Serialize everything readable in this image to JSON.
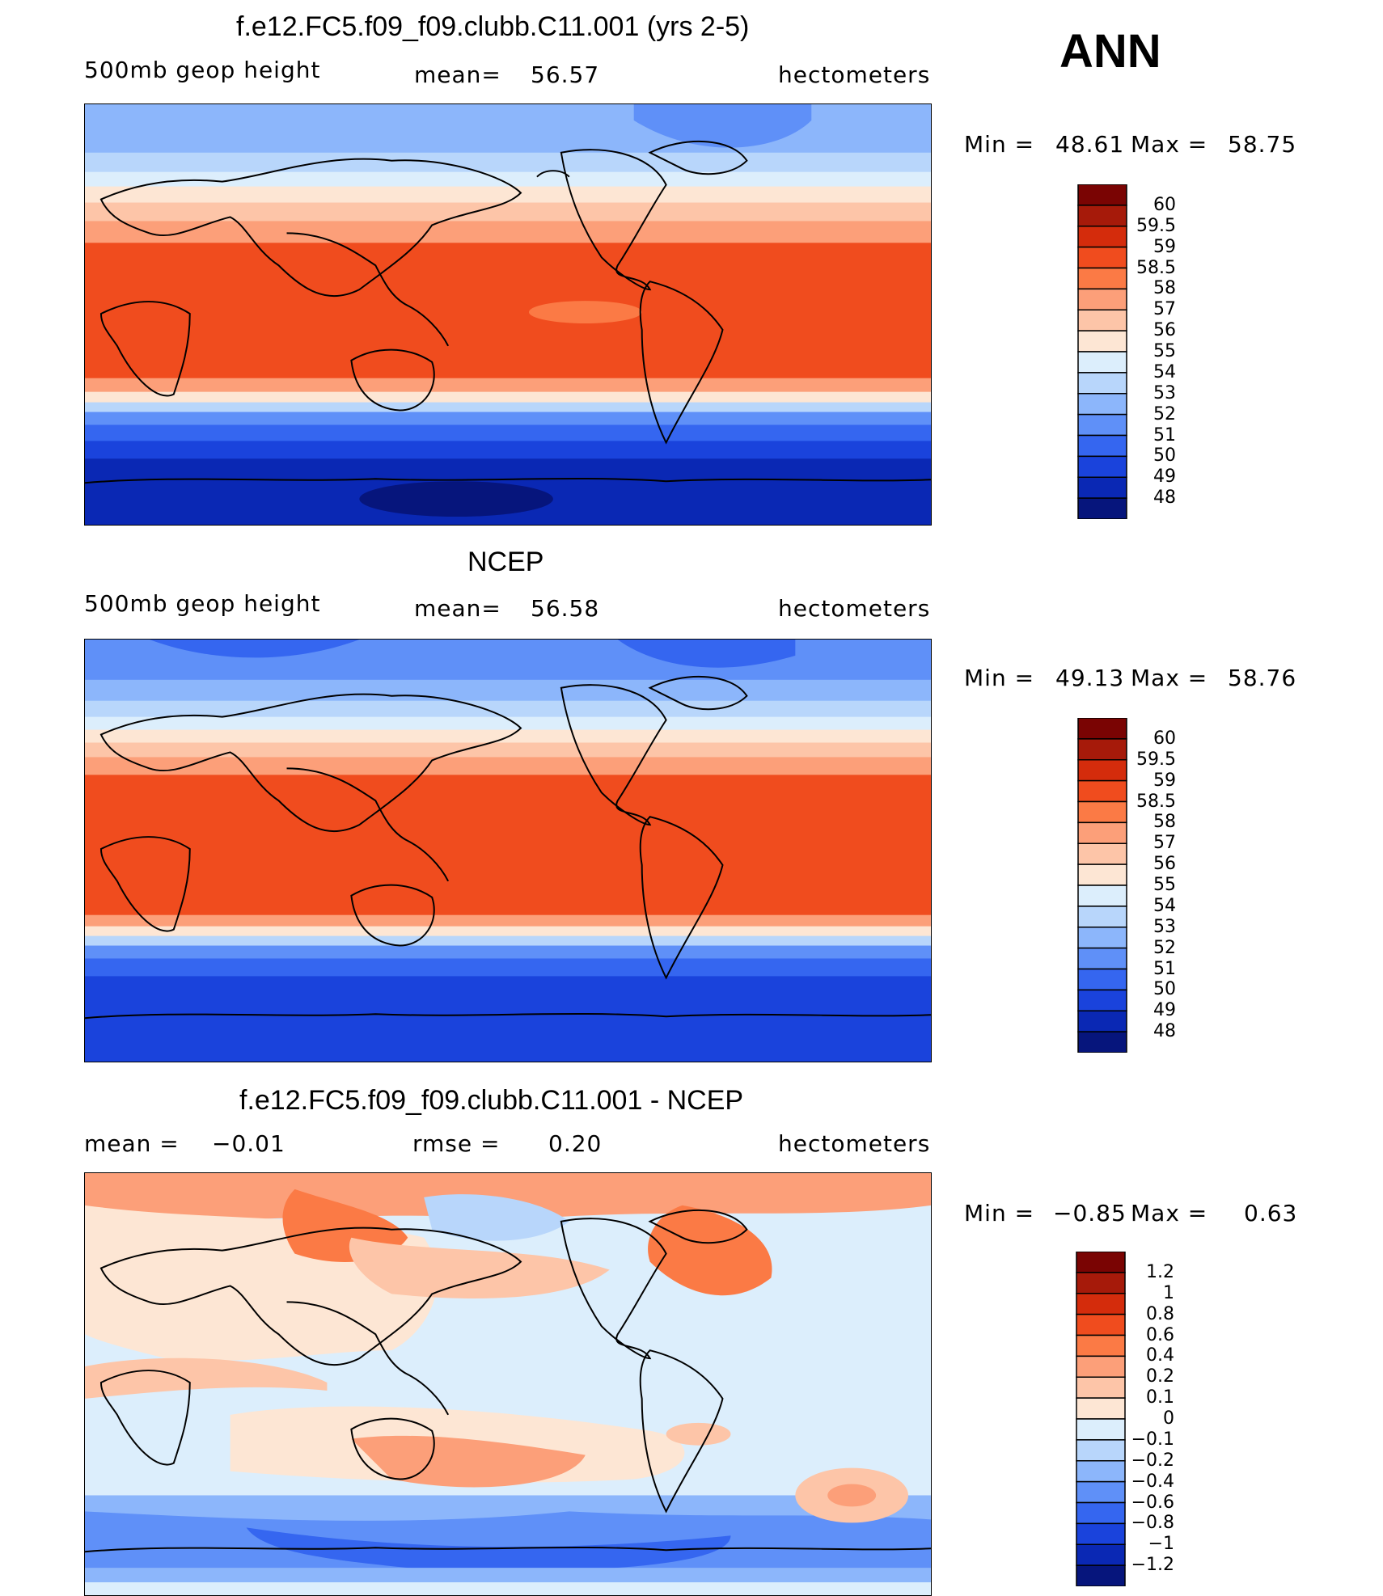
{
  "season": "ANN",
  "panels": [
    {
      "title": "f.e12.FC5.f09_f09.clubb.C11.001 (yrs 2-5)",
      "left_label": "500mb geop height",
      "mid_label": "mean=",
      "mid_value": "56.57",
      "right_label": "hectometers",
      "min_label": "Min =",
      "min_value": "48.61",
      "max_label": "Max =",
      "max_value": "58.75"
    },
    {
      "title": "NCEP",
      "left_label": "500mb geop height",
      "mid_label": "mean=",
      "mid_value": "56.58",
      "right_label": "hectometers",
      "min_label": "Min =",
      "min_value": "49.13",
      "max_label": "Max =",
      "max_value": "58.76"
    },
    {
      "title": "f.e12.FC5.f09_f09.clubb.C11.001 - NCEP",
      "left_label": "mean =",
      "left_value": "−0.01",
      "mid_label": "rmse =",
      "mid_value": "0.20",
      "right_label": "hectometers",
      "min_label": "Min =",
      "min_value": "−0.85",
      "max_label": "Max =",
      "max_value": "0.63"
    }
  ],
  "chart_data": [
    {
      "type": "heatmap",
      "title": "f.e12.FC5.f09_f09.clubb.C11.001 (yrs 2-5)",
      "variable": "500mb geop height",
      "units": "hectometers",
      "mean": 56.57,
      "min": 48.61,
      "max": 58.75,
      "colorbar_labels": [
        "60",
        "59.5",
        "59",
        "58.5",
        "58",
        "57",
        "56",
        "55",
        "54",
        "53",
        "52",
        "51",
        "50",
        "49",
        "48"
      ],
      "colors": [
        "#7a0403",
        "#a61a0a",
        "#d42c0c",
        "#f04c1e",
        "#fb7a45",
        "#fc9f79",
        "#fdc5a8",
        "#fde6d4",
        "#dceefc",
        "#b8d6fb",
        "#8cb6fb",
        "#5f90f8",
        "#3566f0",
        "#1a43dc",
        "#0a28b4",
        "#06157c"
      ]
    },
    {
      "type": "heatmap",
      "title": "NCEP",
      "variable": "500mb geop height",
      "units": "hectometers",
      "mean": 56.58,
      "min": 49.13,
      "max": 58.76,
      "colorbar_labels": [
        "60",
        "59.5",
        "59",
        "58.5",
        "58",
        "57",
        "56",
        "55",
        "54",
        "53",
        "52",
        "51",
        "50",
        "49",
        "48"
      ],
      "colors": [
        "#7a0403",
        "#a61a0a",
        "#d42c0c",
        "#f04c1e",
        "#fb7a45",
        "#fc9f79",
        "#fdc5a8",
        "#fde6d4",
        "#dceefc",
        "#b8d6fb",
        "#8cb6fb",
        "#5f90f8",
        "#3566f0",
        "#1a43dc",
        "#0a28b4",
        "#06157c"
      ]
    },
    {
      "type": "heatmap",
      "title": "f.e12.FC5.f09_f09.clubb.C11.001 - NCEP",
      "units": "hectometers",
      "mean": -0.01,
      "rmse": 0.2,
      "min": -0.85,
      "max": 0.63,
      "colorbar_labels": [
        "1.2",
        "1",
        "0.8",
        "0.6",
        "0.4",
        "0.2",
        "0.1",
        "0",
        "−0.1",
        "−0.2",
        "−0.4",
        "−0.6",
        "−0.8",
        "−1",
        "−1.2"
      ],
      "colors": [
        "#7a0403",
        "#a61a0a",
        "#d42c0c",
        "#f04c1e",
        "#fb7a45",
        "#fc9f79",
        "#fdc5a8",
        "#fde6d4",
        "#dceefc",
        "#b8d6fb",
        "#8cb6fb",
        "#5f90f8",
        "#3566f0",
        "#1a43dc",
        "#0a28b4",
        "#06157c"
      ]
    }
  ]
}
